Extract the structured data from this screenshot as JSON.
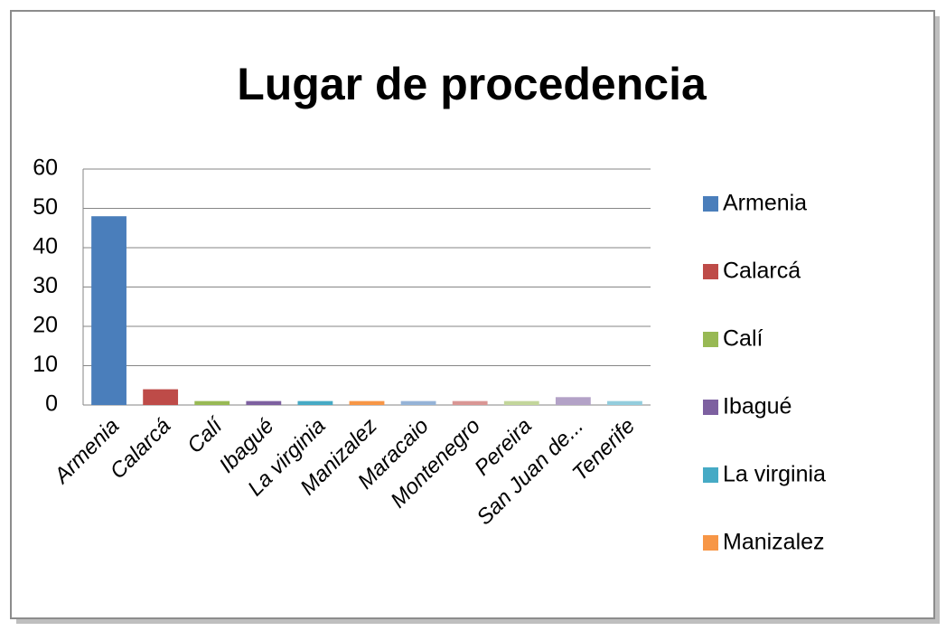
{
  "chart_data": {
    "type": "bar",
    "title": "Lugar de procedencia",
    "categories": [
      "Armenia",
      "Calarcá",
      "Calí",
      "Ibagué",
      "La virginia",
      "Manizalez",
      "Maracaio",
      "Montenegro",
      "Pereira",
      "San Juan de...",
      "Tenerife"
    ],
    "values": [
      48,
      4,
      1,
      1,
      1,
      1,
      1,
      1,
      1,
      2,
      1
    ],
    "colors": [
      "#4a7ebb",
      "#be4b48",
      "#98b954",
      "#7d60a0",
      "#46aac5",
      "#f79646",
      "#95b3d7",
      "#d99694",
      "#c3d69b",
      "#b3a2c7",
      "#93cddd"
    ],
    "ylim": [
      0,
      60
    ],
    "yticks": [
      0,
      10,
      20,
      30,
      40,
      50,
      60
    ],
    "grid": true,
    "legend": "right"
  }
}
